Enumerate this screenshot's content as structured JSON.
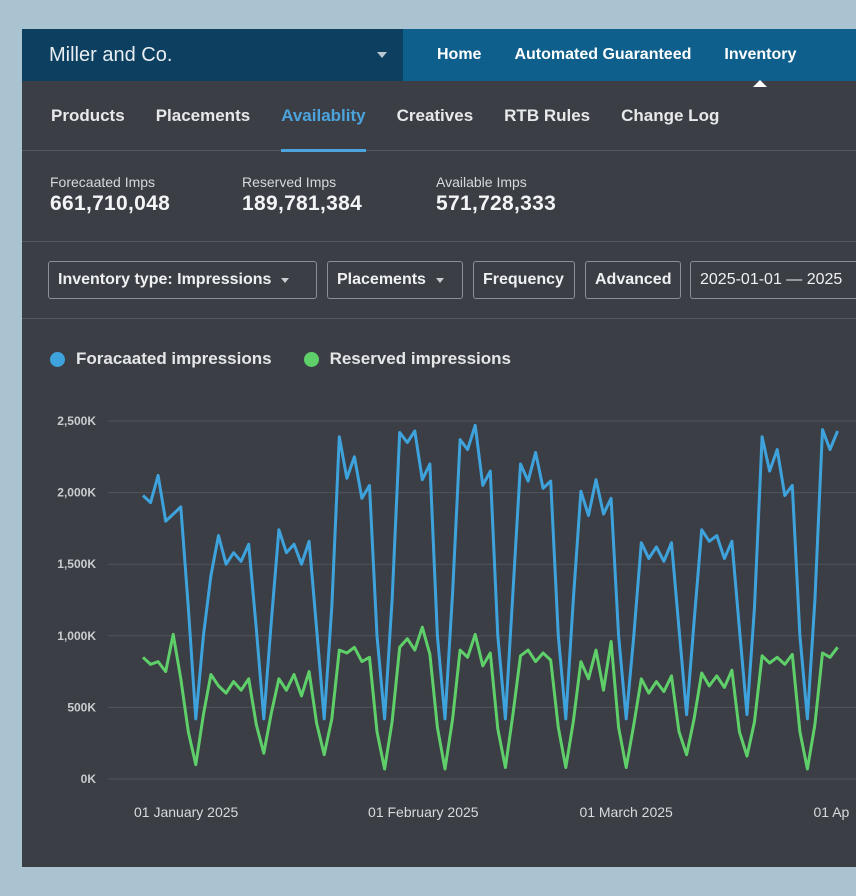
{
  "account": {
    "name": "Miller and Co."
  },
  "topnav": [
    "Home",
    "Automated Guaranteed",
    "Inventory"
  ],
  "topnav_active": "Inventory",
  "subnav": [
    "Products",
    "Placements",
    "Availablity",
    "Creatives",
    "RTB Rules",
    "Change Log"
  ],
  "subnav_active": "Availablity",
  "stats": [
    {
      "label": "Forecaated Imps",
      "value": "661,710,048"
    },
    {
      "label": "Reserved Imps",
      "value": "189,781,384"
    },
    {
      "label": "Available Imps",
      "value": "571,728,333"
    }
  ],
  "filters": {
    "inventory_type": "Inventory type: Impressions",
    "placements": "Placements",
    "frequency": "Frequency",
    "advanced": "Advanced",
    "date_range": "2025-01-01 — 2025"
  },
  "colors": {
    "forecast": "#3ea3dc",
    "reserved": "#5fcf6a",
    "account_bg": "#0c3f60",
    "nav_bg": "#0f5f8c",
    "accent": "#4ba4dd"
  },
  "chart_data": {
    "type": "line",
    "legend": [
      "Foracaated impressions",
      "Reserved impressions"
    ],
    "y_ticks": [
      "2,500K",
      "2,000K",
      "1,500K",
      "1,000K",
      "500K",
      "0K"
    ],
    "ylim": [
      0,
      2500000
    ],
    "x_ticks": [
      "01 January 2025",
      "01 February 2025",
      "01 March 2025",
      "01 Ap"
    ],
    "x": [
      "2025-01-01",
      "2025-01-02",
      "2025-01-03",
      "2025-01-04",
      "2025-01-05",
      "2025-01-06",
      "2025-01-07",
      "2025-01-08",
      "2025-01-09",
      "2025-01-10",
      "2025-01-11",
      "2025-01-12",
      "2025-01-13",
      "2025-01-14",
      "2025-01-15",
      "2025-01-16",
      "2025-01-17",
      "2025-01-18",
      "2025-01-19",
      "2025-01-20",
      "2025-01-21",
      "2025-01-22",
      "2025-01-23",
      "2025-01-24",
      "2025-01-25",
      "2025-01-26",
      "2025-01-27",
      "2025-01-28",
      "2025-01-29",
      "2025-01-30",
      "2025-01-31",
      "2025-02-01",
      "2025-02-02",
      "2025-02-03",
      "2025-02-04",
      "2025-02-05",
      "2025-02-06",
      "2025-02-07",
      "2025-02-08",
      "2025-02-09",
      "2025-02-10",
      "2025-02-11",
      "2025-02-12",
      "2025-02-13",
      "2025-02-14",
      "2025-02-15",
      "2025-02-16",
      "2025-02-17",
      "2025-02-18",
      "2025-02-19",
      "2025-02-20",
      "2025-02-21",
      "2025-02-22",
      "2025-02-23",
      "2025-02-24",
      "2025-02-25",
      "2025-02-26",
      "2025-02-27",
      "2025-02-28",
      "2025-03-01",
      "2025-03-02",
      "2025-03-03",
      "2025-03-04",
      "2025-03-05",
      "2025-03-06",
      "2025-03-07",
      "2025-03-08",
      "2025-03-09",
      "2025-03-10",
      "2025-03-11",
      "2025-03-12",
      "2025-03-13",
      "2025-03-14",
      "2025-03-15",
      "2025-03-16",
      "2025-03-17",
      "2025-03-18",
      "2025-03-19",
      "2025-03-20",
      "2025-03-21",
      "2025-03-22",
      "2025-03-23",
      "2025-03-24",
      "2025-03-25",
      "2025-03-26",
      "2025-03-27",
      "2025-03-28",
      "2025-03-29",
      "2025-03-30",
      "2025-03-31",
      "2025-04-01",
      "2025-04-02",
      "2025-04-03"
    ],
    "series": [
      {
        "name": "Foracaated impressions",
        "color": "#3ea3dc",
        "values": [
          1980000,
          1930000,
          2120000,
          1800000,
          1850000,
          1900000,
          1200000,
          420000,
          1000000,
          1420000,
          1700000,
          1500000,
          1580000,
          1520000,
          1640000,
          1050000,
          420000,
          1100000,
          1740000,
          1580000,
          1640000,
          1500000,
          1660000,
          1050000,
          420000,
          1200000,
          2390000,
          2100000,
          2250000,
          1960000,
          2050000,
          1000000,
          420000,
          1250000,
          2420000,
          2350000,
          2430000,
          2090000,
          2200000,
          1000000,
          420000,
          1300000,
          2370000,
          2300000,
          2470000,
          2050000,
          2150000,
          1000000,
          420000,
          1300000,
          2200000,
          2080000,
          2280000,
          2030000,
          2080000,
          1000000,
          420000,
          1250000,
          2010000,
          1840000,
          2090000,
          1850000,
          1960000,
          1000000,
          420000,
          1000000,
          1650000,
          1540000,
          1620000,
          1520000,
          1650000,
          1050000,
          450000,
          1100000,
          1740000,
          1660000,
          1700000,
          1540000,
          1660000,
          1050000,
          450000,
          1200000,
          2390000,
          2150000,
          2300000,
          1980000,
          2050000,
          1000000,
          420000,
          1250000,
          2440000,
          2300000,
          2430000
        ]
      },
      {
        "name": "Reserved impressions",
        "color": "#5fcf6a",
        "values": [
          850000,
          800000,
          820000,
          750000,
          1010000,
          700000,
          330000,
          100000,
          450000,
          730000,
          650000,
          600000,
          680000,
          620000,
          700000,
          380000,
          180000,
          460000,
          700000,
          620000,
          730000,
          580000,
          750000,
          390000,
          170000,
          420000,
          900000,
          880000,
          920000,
          820000,
          850000,
          330000,
          70000,
          400000,
          920000,
          980000,
          900000,
          1060000,
          870000,
          360000,
          70000,
          420000,
          900000,
          850000,
          1010000,
          790000,
          880000,
          350000,
          80000,
          450000,
          860000,
          900000,
          820000,
          880000,
          830000,
          360000,
          80000,
          400000,
          820000,
          700000,
          900000,
          620000,
          960000,
          360000,
          80000,
          380000,
          700000,
          600000,
          680000,
          610000,
          720000,
          330000,
          170000,
          420000,
          740000,
          650000,
          720000,
          640000,
          760000,
          330000,
          160000,
          400000,
          860000,
          810000,
          850000,
          800000,
          870000,
          330000,
          70000,
          380000,
          880000,
          850000,
          920000
        ]
      }
    ]
  }
}
